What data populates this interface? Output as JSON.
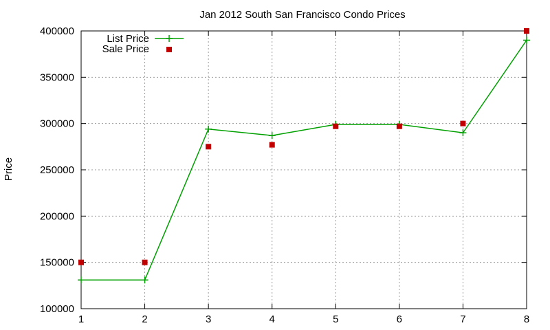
{
  "chart_data": {
    "type": "line",
    "title": "Jan 2012 South San Francisco Condo Prices",
    "xlabel": "",
    "ylabel": "Price",
    "x": [
      1,
      2,
      3,
      4,
      5,
      6,
      7,
      8
    ],
    "xlim": [
      1,
      8
    ],
    "ylim": [
      100000,
      400000
    ],
    "xticks": [
      "1",
      "2",
      "3",
      "4",
      "5",
      "6",
      "7",
      "8"
    ],
    "yticks": [
      "100000",
      "150000",
      "200000",
      "250000",
      "300000",
      "350000",
      "400000"
    ],
    "grid": true,
    "legend_position": "top-left",
    "series": [
      {
        "name": "List Price",
        "style": "line with plus markers",
        "color": "#00a000",
        "values": [
          131000,
          131000,
          294000,
          287000,
          299000,
          299000,
          290000,
          390000
        ]
      },
      {
        "name": "Sale Price",
        "style": "square markers",
        "color": "#c00000",
        "values": [
          150000,
          150000,
          275000,
          277000,
          297000,
          297000,
          300000,
          400000
        ]
      }
    ]
  }
}
